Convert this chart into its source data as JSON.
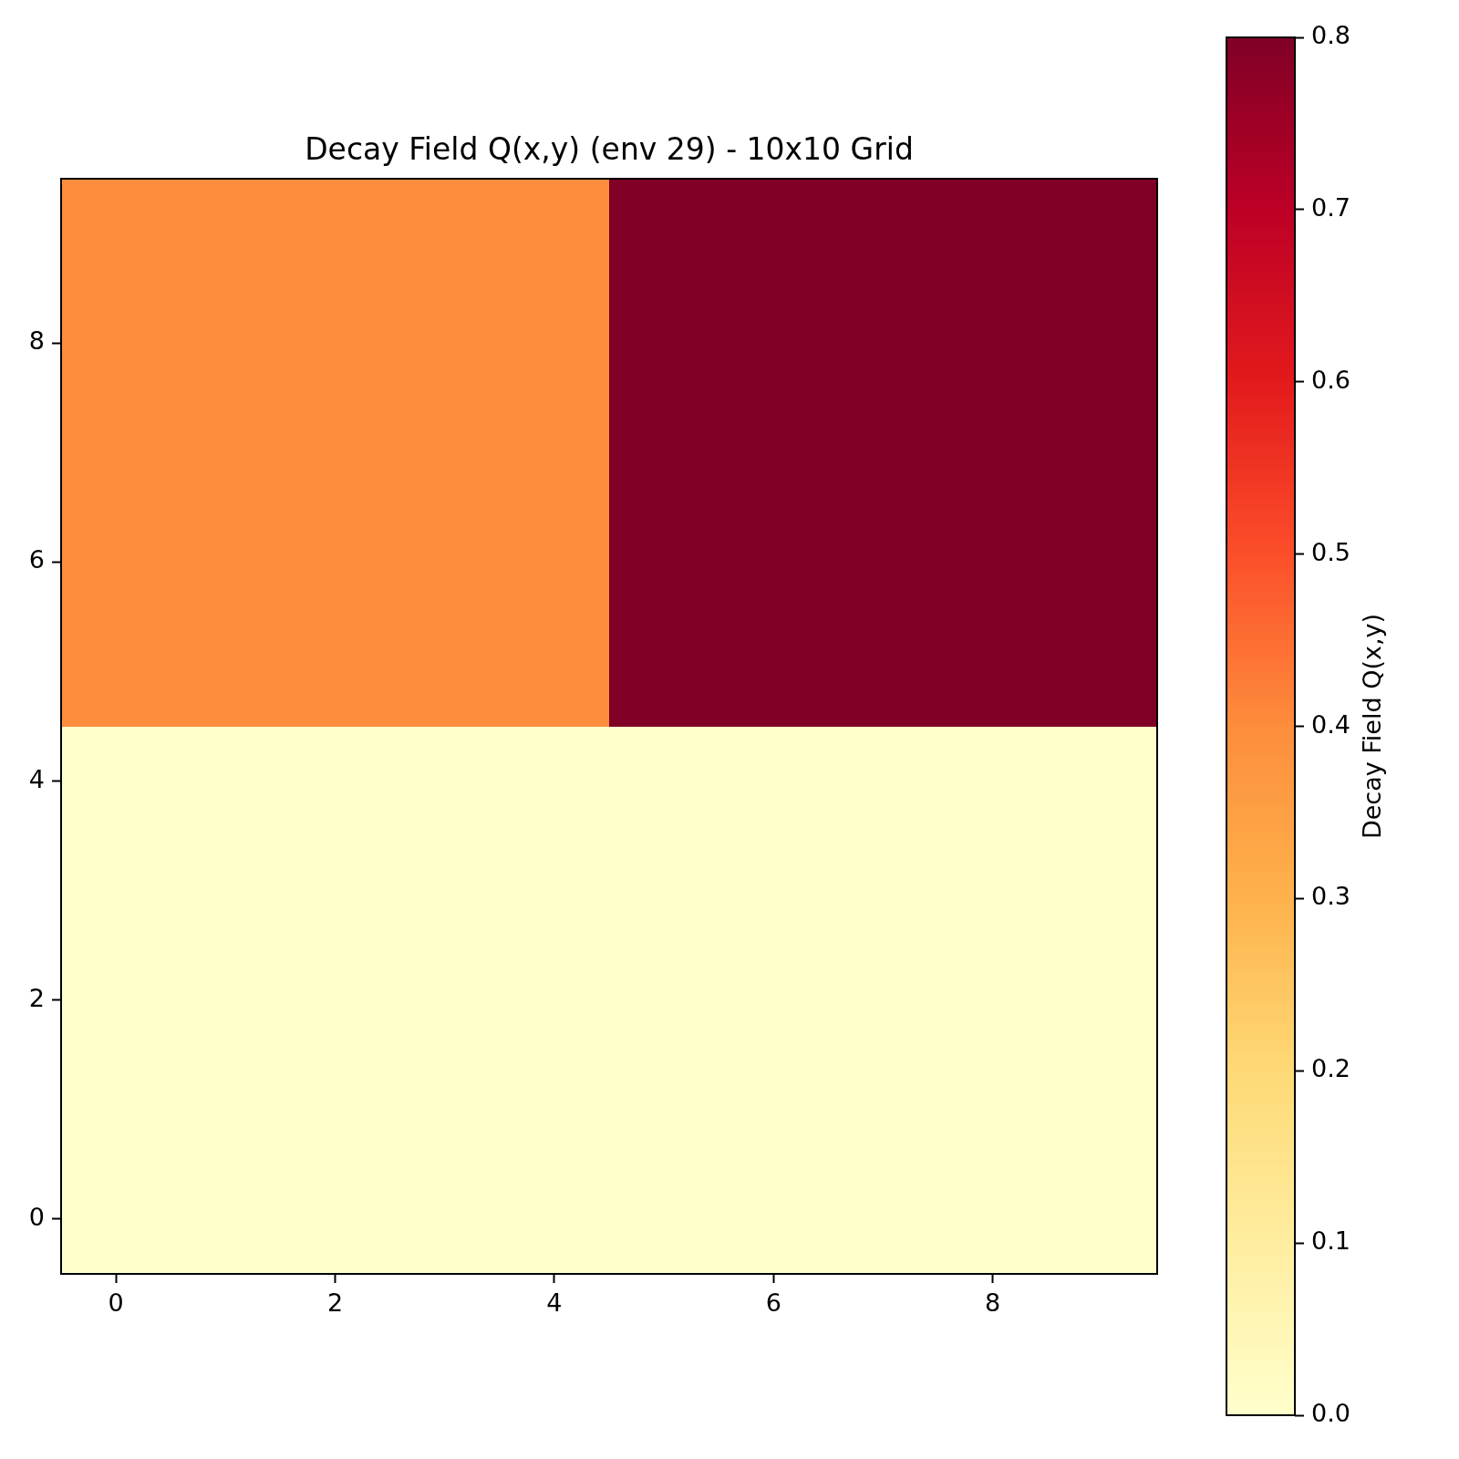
{
  "chart_data": {
    "type": "heatmap",
    "title": "Decay Field Q(x,y) (env 29) - 10x10 Grid",
    "categories": [
      "0",
      null,
      "2",
      null,
      "4",
      null,
      "6",
      null,
      "8",
      null
    ],
    "y_categories": [
      null,
      "8",
      null,
      "6",
      null,
      "4",
      null,
      "2",
      null,
      "0"
    ],
    "cells": [
      [
        0.4,
        0.4,
        0.4,
        0.4,
        0.4,
        0.8,
        0.8,
        0.8,
        0.8,
        0.8
      ],
      [
        0.4,
        0.4,
        0.4,
        0.4,
        0.4,
        0.8,
        0.8,
        0.8,
        0.8,
        0.8
      ],
      [
        0.4,
        0.4,
        0.4,
        0.4,
        0.4,
        0.8,
        0.8,
        0.8,
        0.8,
        0.8
      ],
      [
        0.4,
        0.4,
        0.4,
        0.4,
        0.4,
        0.8,
        0.8,
        0.8,
        0.8,
        0.8
      ],
      [
        0.4,
        0.4,
        0.4,
        0.4,
        0.4,
        0.8,
        0.8,
        0.8,
        0.8,
        0.8
      ],
      [
        0,
        0,
        0,
        0,
        0,
        0,
        0,
        0,
        0,
        0
      ],
      [
        0,
        0,
        0,
        0,
        0,
        0,
        0,
        0,
        0,
        0
      ],
      [
        0,
        0,
        0,
        0,
        0,
        0,
        0,
        0,
        0,
        0
      ],
      [
        0,
        0,
        0,
        0,
        0,
        0,
        0,
        0,
        0,
        0
      ],
      [
        0,
        0,
        0,
        0,
        0,
        0,
        0,
        0,
        0,
        0
      ]
    ],
    "clabel": "Decay Field Q(x,y)",
    "clim": [
      0,
      0.8
    ],
    "cticks": [
      {
        "value": 0,
        "label": "0.0"
      },
      0.1,
      0.2,
      0.3,
      0.4,
      0.5,
      0.6,
      0.7,
      0.8
    ]
  }
}
